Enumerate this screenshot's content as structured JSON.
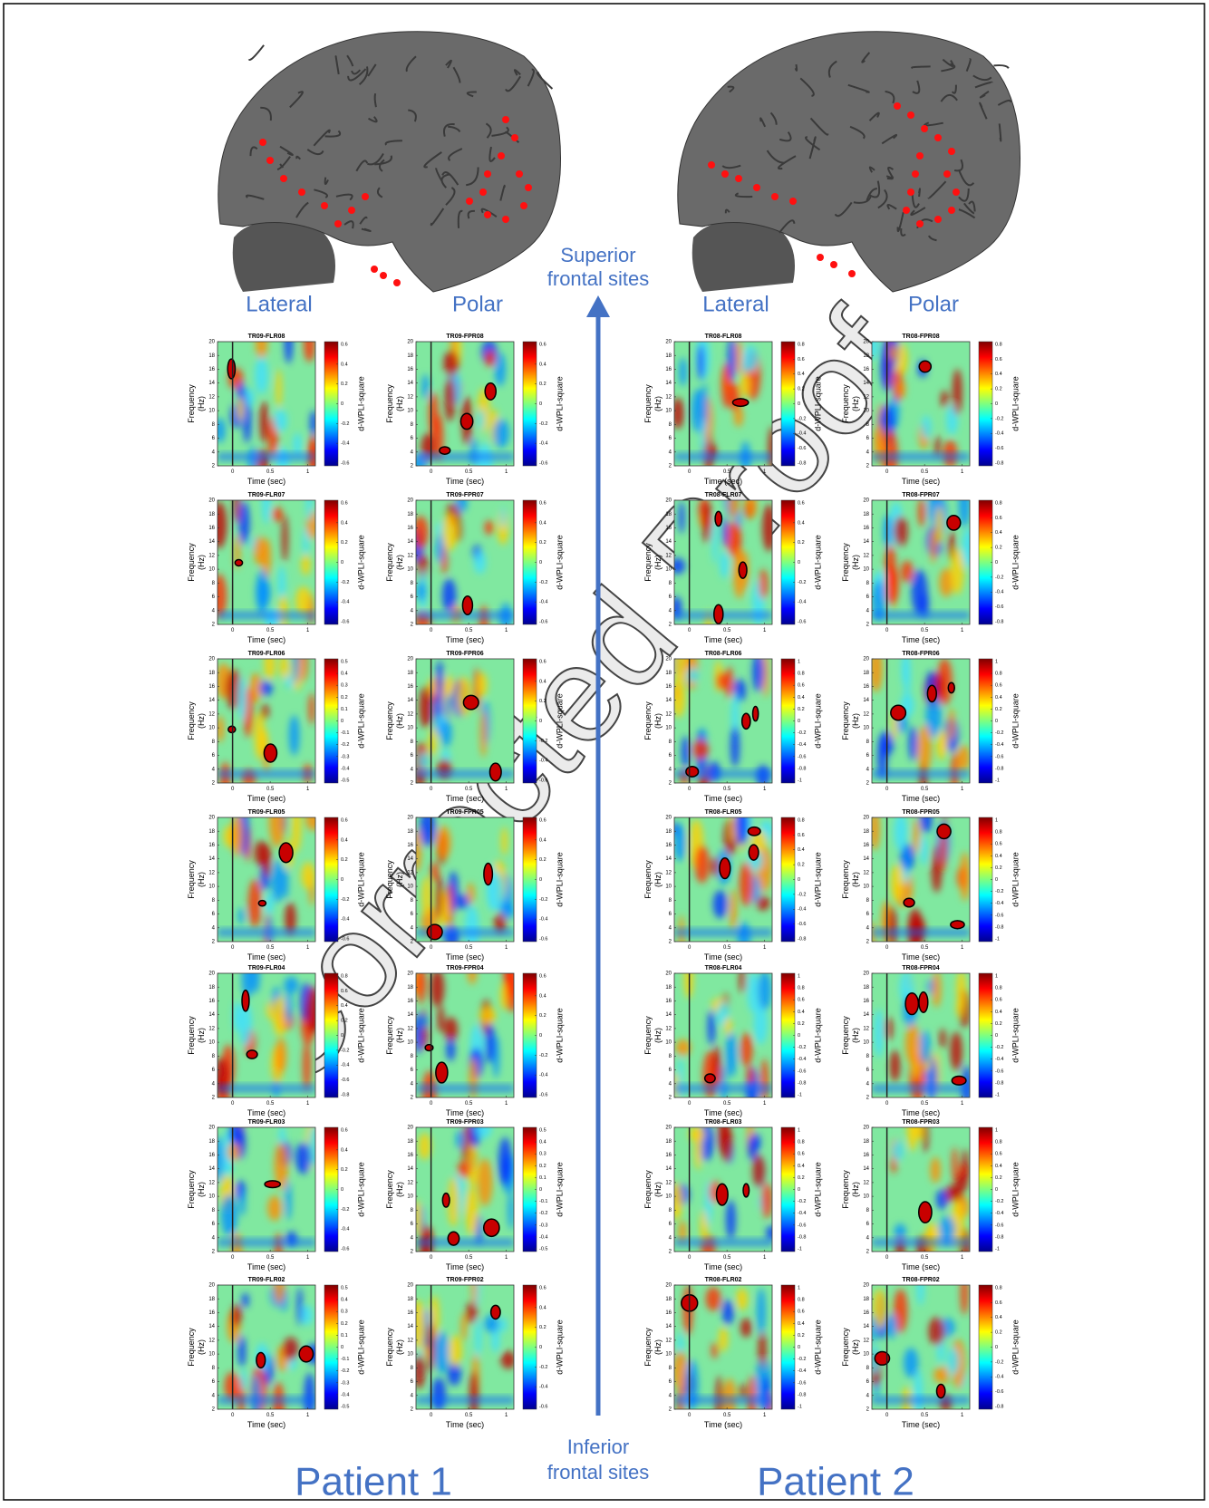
{
  "watermark": "Corrected Proof",
  "arrow": {
    "top_label": [
      "Superior",
      "frontal sites"
    ],
    "bottom_label": [
      "Inferior",
      "frontal sites"
    ]
  },
  "axes": {
    "ylabel": [
      "Frequency",
      "(Hz)"
    ],
    "xlabel": "Time (sec)",
    "cbar_label": "d-WPLI-square",
    "xticks": [
      0,
      0.5,
      1
    ],
    "yticks": [
      2,
      4,
      6,
      8,
      10,
      12,
      14,
      16,
      18,
      20
    ],
    "xlim": [
      -0.2,
      1.1
    ],
    "ylim": [
      2,
      20
    ]
  },
  "patients": [
    {
      "name": "Patient 1",
      "columns": [
        {
          "label": "Lateral",
          "panels": [
            {
              "title": "TR09-FLR08",
              "cbar": [
                -0.6,
                -0.4,
                -0.2,
                0,
                0.2,
                0.4,
                0.6
              ]
            },
            {
              "title": "TR09-FLR07",
              "cbar": [
                -0.6,
                -0.4,
                -0.2,
                0,
                0.2,
                0.4,
                0.6
              ]
            },
            {
              "title": "TR09-FLR06",
              "cbar": [
                -0.5,
                -0.4,
                -0.3,
                -0.2,
                -0.1,
                0,
                0.1,
                0.2,
                0.3,
                0.4,
                0.5
              ]
            },
            {
              "title": "TR09-FLR05",
              "cbar": [
                -0.6,
                -0.4,
                -0.2,
                0,
                0.2,
                0.4,
                0.6
              ]
            },
            {
              "title": "TR09-FLR04",
              "cbar": [
                -0.8,
                -0.6,
                -0.4,
                -0.2,
                0,
                0.2,
                0.4,
                0.6,
                0.8
              ]
            },
            {
              "title": "TR09-FLR03",
              "cbar": [
                -0.6,
                -0.4,
                -0.2,
                0,
                0.2,
                0.4,
                0.6
              ]
            },
            {
              "title": "TR09-FLR02",
              "cbar": [
                -0.5,
                -0.4,
                -0.3,
                -0.2,
                -0.1,
                0,
                0.1,
                0.2,
                0.3,
                0.4,
                0.5
              ]
            }
          ]
        },
        {
          "label": "Polar",
          "panels": [
            {
              "title": "TR09-FPR08",
              "cbar": [
                -0.6,
                -0.4,
                -0.2,
                0,
                0.2,
                0.4,
                0.6
              ]
            },
            {
              "title": "TR09-FPR07",
              "cbar": [
                -0.6,
                -0.4,
                -0.2,
                0,
                0.2,
                0.4,
                0.6
              ]
            },
            {
              "title": "TR09-FPR06",
              "cbar": [
                -0.6,
                -0.4,
                -0.2,
                0,
                0.2,
                0.4,
                0.6
              ]
            },
            {
              "title": "TR09-FPR05",
              "cbar": [
                -0.6,
                -0.4,
                -0.2,
                0,
                0.2,
                0.4,
                0.6
              ]
            },
            {
              "title": "TR09-FPR04",
              "cbar": [
                -0.6,
                -0.4,
                -0.2,
                0,
                0.2,
                0.4,
                0.6
              ]
            },
            {
              "title": "TR09-FPR03",
              "cbar": [
                -0.5,
                -0.4,
                -0.3,
                -0.2,
                -0.1,
                0,
                0.1,
                0.2,
                0.3,
                0.4,
                0.5
              ]
            },
            {
              "title": "TR09-FPR02",
              "cbar": [
                -0.6,
                -0.4,
                -0.2,
                0,
                0.2,
                0.4,
                0.6
              ]
            }
          ]
        }
      ]
    },
    {
      "name": "Patient 2",
      "columns": [
        {
          "label": "Lateral",
          "panels": [
            {
              "title": "TR08-FLR08",
              "cbar": [
                -0.8,
                -0.6,
                -0.4,
                -0.2,
                0,
                0.2,
                0.4,
                0.6,
                0.8
              ]
            },
            {
              "title": "TR08-FLR07",
              "cbar": [
                -0.6,
                -0.4,
                -0.2,
                0,
                0.2,
                0.4,
                0.6
              ]
            },
            {
              "title": "TR08-FLR06",
              "cbar": [
                -1,
                -0.8,
                -0.6,
                -0.4,
                -0.2,
                0,
                0.2,
                0.4,
                0.6,
                0.8,
                1
              ]
            },
            {
              "title": "TR08-FLR05",
              "cbar": [
                -0.8,
                -0.6,
                -0.4,
                -0.2,
                0,
                0.2,
                0.4,
                0.6,
                0.8
              ]
            },
            {
              "title": "TR08-FLR04",
              "cbar": [
                -1,
                -0.8,
                -0.6,
                -0.4,
                -0.2,
                0,
                0.2,
                0.4,
                0.6,
                0.8,
                1
              ]
            },
            {
              "title": "TR08-FLR03",
              "cbar": [
                -1,
                -0.8,
                -0.6,
                -0.4,
                -0.2,
                0,
                0.2,
                0.4,
                0.6,
                0.8,
                1
              ]
            },
            {
              "title": "TR08-FLR02",
              "cbar": [
                -1,
                -0.8,
                -0.6,
                -0.4,
                -0.2,
                0,
                0.2,
                0.4,
                0.6,
                0.8,
                1
              ]
            }
          ]
        },
        {
          "label": "Polar",
          "panels": [
            {
              "title": "TR08-FPR08",
              "cbar": [
                -0.8,
                -0.6,
                -0.4,
                -0.2,
                0,
                0.2,
                0.4,
                0.6,
                0.8
              ]
            },
            {
              "title": "TR08-FPR07",
              "cbar": [
                -0.8,
                -0.6,
                -0.4,
                -0.2,
                0,
                0.2,
                0.4,
                0.6,
                0.8
              ]
            },
            {
              "title": "TR08-FPR06",
              "cbar": [
                -1,
                -0.8,
                -0.6,
                -0.4,
                -0.2,
                0,
                0.2,
                0.4,
                0.6,
                0.8,
                1
              ]
            },
            {
              "title": "TR08-FPR05",
              "cbar": [
                -1,
                -0.8,
                -0.6,
                -0.4,
                -0.2,
                0,
                0.2,
                0.4,
                0.6,
                0.8,
                1
              ]
            },
            {
              "title": "TR08-FPR04",
              "cbar": [
                -1,
                -0.8,
                -0.6,
                -0.4,
                -0.2,
                0,
                0.2,
                0.4,
                0.6,
                0.8,
                1
              ]
            },
            {
              "title": "TR08-FPR03",
              "cbar": [
                -1,
                -0.8,
                -0.6,
                -0.4,
                -0.2,
                0,
                0.2,
                0.4,
                0.6,
                0.8,
                1
              ]
            },
            {
              "title": "TR08-FPR02",
              "cbar": [
                -0.8,
                -0.6,
                -0.4,
                -0.2,
                0,
                0.2,
                0.4,
                0.6,
                0.8
              ]
            }
          ]
        }
      ]
    }
  ]
}
